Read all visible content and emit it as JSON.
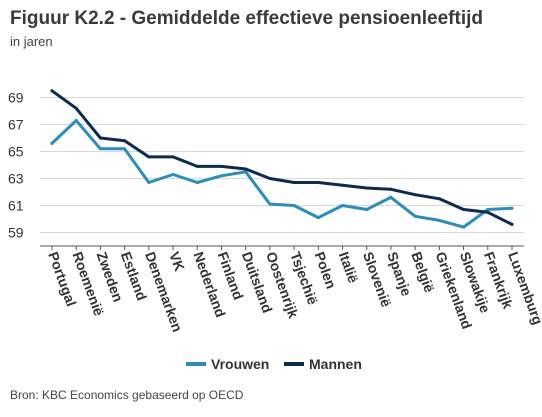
{
  "title": "Figuur K2.2 - Gemiddelde effectieve pensioenleeftijd",
  "subtitle": "in jaren",
  "source": "Bron: KBC Economics gebaseerd op OECD",
  "colors": {
    "vrouwen": "#2b8db8",
    "mannen": "#0d2a4f",
    "grid": "#d9d9d9",
    "axis": "#555555"
  },
  "chart_data": {
    "type": "line",
    "title": "Figuur K2.2 - Gemiddelde effectieve pensioenleeftijd",
    "subtitle": "in jaren",
    "xlabel": "",
    "ylabel": "",
    "ylim": [
      58,
      70
    ],
    "yticks": [
      59,
      61,
      63,
      65,
      67,
      69
    ],
    "grid": true,
    "legend": "bottom",
    "categories": [
      "Portugal",
      "Roemenië",
      "Zweden",
      "Estland",
      "Denemarken",
      "VK",
      "Nederland",
      "Finland",
      "Duitsland",
      "Oostenrijk",
      "Tsjechië",
      "Polen",
      "Italië",
      "Slovenië",
      "Spanje",
      "België",
      "Griekenland",
      "Slowakije",
      "Frankrijk",
      "Luxemburg"
    ],
    "series": [
      {
        "name": "Vrouwen",
        "values": [
          65.6,
          67.3,
          65.2,
          65.2,
          62.7,
          63.3,
          62.7,
          63.2,
          63.5,
          61.1,
          61.0,
          60.1,
          61.0,
          60.7,
          61.6,
          60.2,
          59.9,
          59.4,
          60.7,
          60.8
        ]
      },
      {
        "name": "Mannen",
        "values": [
          69.5,
          68.2,
          66.0,
          65.8,
          64.6,
          64.6,
          63.9,
          63.9,
          63.7,
          63.0,
          62.7,
          62.7,
          62.5,
          62.3,
          62.2,
          61.8,
          61.5,
          60.7,
          60.5,
          59.6
        ]
      }
    ]
  }
}
